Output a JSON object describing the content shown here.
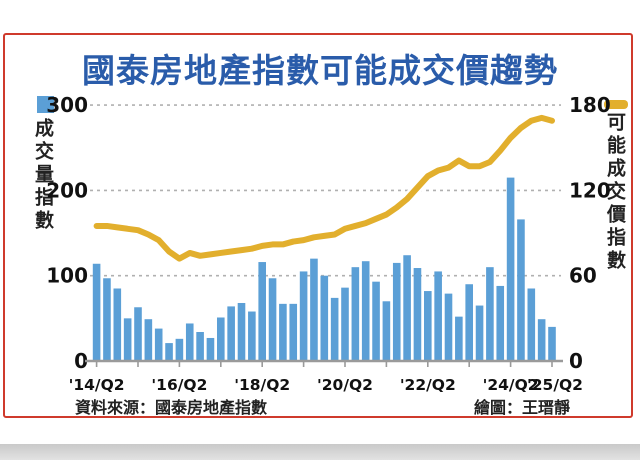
{
  "page": {
    "title": "國泰房地產指數可能成交價趨勢",
    "source": "資料來源：國泰房地產指數",
    "credit": "繪圖：王瑨靜"
  },
  "chart_data": {
    "type": "bar",
    "title": "國泰房地產指數可能成交價趨勢",
    "categories": [
      "14Q2",
      "14Q3",
      "14Q4",
      "15Q1",
      "15Q2",
      "15Q3",
      "15Q4",
      "16Q1",
      "16Q2",
      "16Q3",
      "16Q4",
      "17Q1",
      "17Q2",
      "17Q3",
      "17Q4",
      "18Q1",
      "18Q2",
      "18Q3",
      "18Q4",
      "19Q1",
      "19Q2",
      "19Q3",
      "19Q4",
      "20Q1",
      "20Q2",
      "20Q3",
      "20Q4",
      "21Q1",
      "21Q2",
      "21Q3",
      "21Q4",
      "22Q1",
      "22Q2",
      "22Q3",
      "22Q4",
      "23Q1",
      "23Q2",
      "23Q3",
      "23Q4",
      "24Q1",
      "24Q2",
      "24Q3",
      "24Q4",
      "25Q1",
      "25Q2"
    ],
    "x_tick_labels": [
      "'14/Q2",
      "'16/Q2",
      "'18/Q2",
      "'20/Q2",
      "'22/Q2",
      "'24/Q2",
      "'25/Q2"
    ],
    "x_tick_indices": [
      0,
      8,
      16,
      24,
      32,
      40,
      44
    ],
    "series": [
      {
        "name": "成交量指數",
        "type": "bar",
        "axis": "left",
        "values": [
          114,
          97,
          85,
          50,
          63,
          49,
          38,
          21,
          26,
          44,
          34,
          27,
          51,
          64,
          68,
          58,
          116,
          97,
          67,
          67,
          105,
          120,
          100,
          74,
          86,
          110,
          117,
          93,
          70,
          115,
          124,
          109,
          82,
          105,
          79,
          52,
          90,
          65,
          110,
          88,
          215,
          166,
          85,
          49,
          40
        ]
      },
      {
        "name": "可能成交價指數",
        "type": "line",
        "axis": "right",
        "values": [
          95,
          95,
          94,
          93,
          92,
          89,
          85,
          77,
          72,
          76,
          74,
          75,
          76,
          77,
          78,
          79,
          81,
          82,
          82,
          84,
          85,
          87,
          88,
          89,
          93,
          95,
          97,
          100,
          103,
          108,
          114,
          122,
          130,
          134,
          136,
          141,
          137,
          137,
          140,
          148,
          157,
          164,
          169,
          171,
          169
        ]
      }
    ],
    "left_axis": {
      "title": "成交量指數",
      "range": [
        0,
        300
      ],
      "ticks": [
        0,
        100,
        200,
        300
      ]
    },
    "right_axis": {
      "title": "可能成交價指數",
      "range": [
        0,
        180
      ],
      "ticks": [
        0,
        60,
        120,
        180
      ]
    },
    "grid": true,
    "legend_position": "top-outside",
    "colors": {
      "bar": "#5b9fd6",
      "line": "#e2af2d",
      "line_casing": "#ffffff",
      "title": "#2a5caa",
      "grid": "#b0b0b0",
      "axis": "#9a9a9a",
      "frame": "#cf3a2c",
      "text": "#111111"
    }
  }
}
